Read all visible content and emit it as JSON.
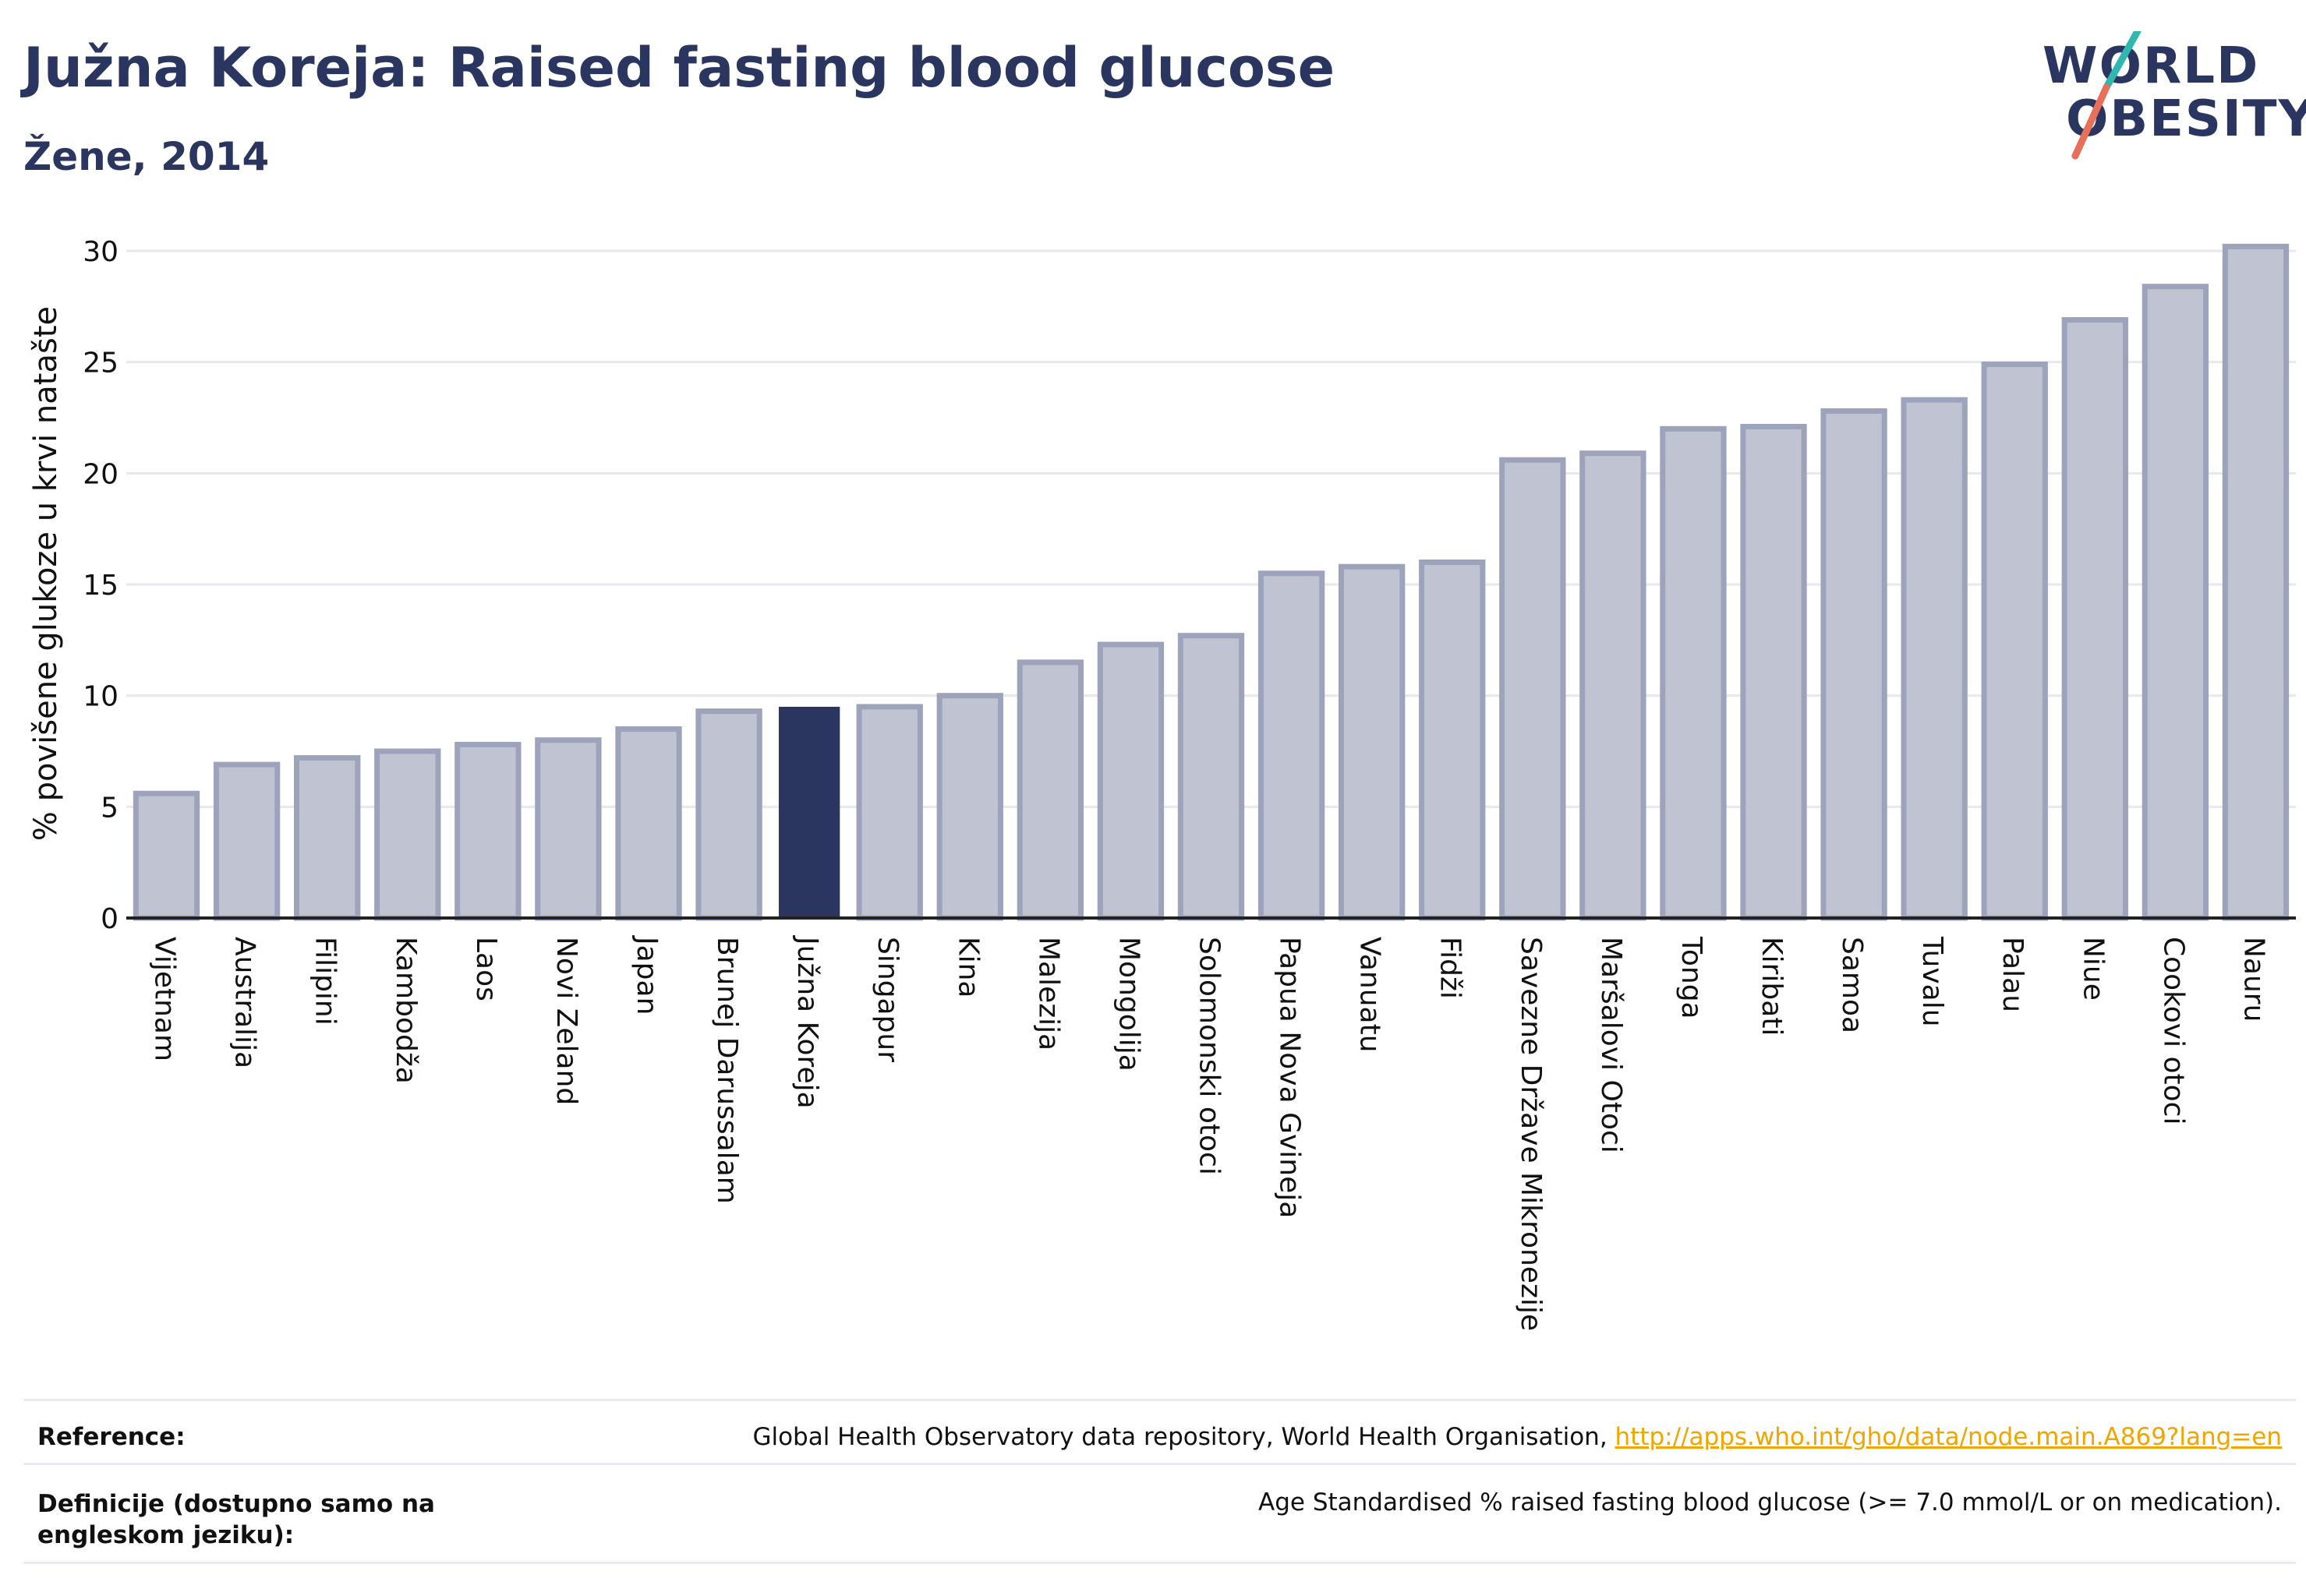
{
  "title": "Južna Koreja: Raised fasting blood glucose",
  "subtitle": "Žene, 2014",
  "logo": {
    "line1": "WORLD",
    "line2": "OBESITY",
    "accent_colors": [
      "#2fb7b0",
      "#e8705a"
    ]
  },
  "colors": {
    "bar": "#bfc3d2",
    "bar_border": "#9da3bb",
    "highlight": "#2a3560",
    "grid": "#e6e8ee",
    "axis": "#222222"
  },
  "chart_data": {
    "type": "bar",
    "title": "Južna Koreja: Raised fasting blood glucose",
    "subtitle": "Žene, 2014",
    "ylabel": "% povišene glukoze u krvi natašte",
    "xlabel": "",
    "ylim": [
      0,
      30
    ],
    "yticks": [
      0,
      5,
      10,
      15,
      20,
      25,
      30
    ],
    "grid": true,
    "highlight": "Južna Koreja",
    "categories": [
      "Vijetnam",
      "Australija",
      "Filipini",
      "Kambodža",
      "Laos",
      "Novi Zeland",
      "Japan",
      "Brunej Darussalam",
      "Južna Koreja",
      "Singapur",
      "Kina",
      "Malezija",
      "Mongolija",
      "Solomonski otoci",
      "Papua Nova Gvineja",
      "Vanuatu",
      "Fidži",
      "Savezne Države Mikronezije",
      "Maršalovi Otoci",
      "Tonga",
      "Kiribati",
      "Samoa",
      "Tuvalu",
      "Palau",
      "Niue",
      "Cookovi otoci",
      "Nauru"
    ],
    "values": [
      5.6,
      6.9,
      7.2,
      7.5,
      7.8,
      8.0,
      8.5,
      9.3,
      9.5,
      9.5,
      10.0,
      11.5,
      12.3,
      12.7,
      15.5,
      15.8,
      16.0,
      20.6,
      20.9,
      22.0,
      22.1,
      22.8,
      23.3,
      24.9,
      26.9,
      28.4,
      30.2
    ]
  },
  "reference": {
    "label": "Reference:",
    "text": "Global Health Observatory data repository, World Health Organisation, ",
    "link": "http://apps.who.int/gho/data/node.main.A869?lang=en"
  },
  "definition": {
    "label": "Definicije (dostupno samo na engleskom jeziku):",
    "text": "Age Standardised % raised fasting blood glucose (>= 7.0 mmol/L or on medication)."
  }
}
